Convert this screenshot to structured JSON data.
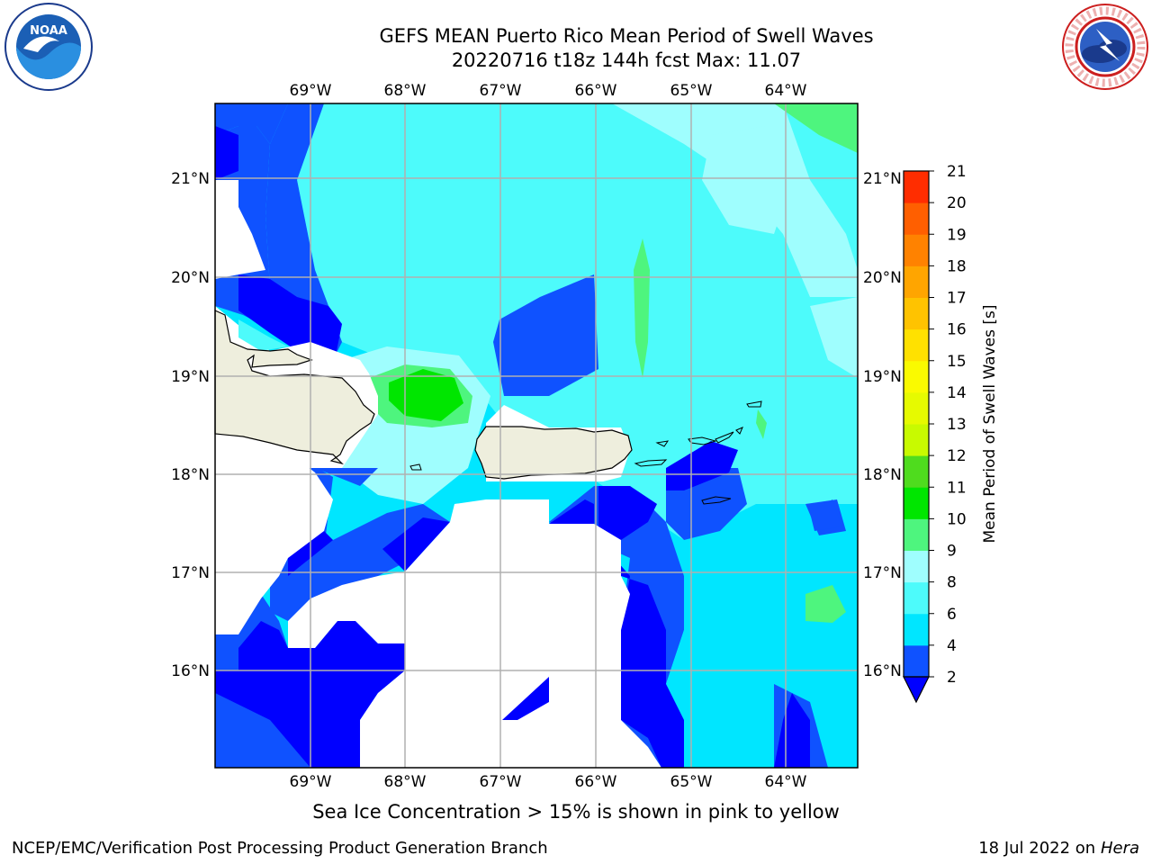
{
  "header": {
    "title_line1": "GEFS MEAN Puerto Rico Mean Period of Swell Waves",
    "title_line2": "20220716 t18z 144h fcst   Max: 11.07"
  },
  "logos": {
    "left": "noaa-logo",
    "right": "nws-logo"
  },
  "map": {
    "lon_labels": [
      "69°W",
      "68°W",
      "67°W",
      "66°W",
      "65°W",
      "64°W"
    ],
    "lat_labels": [
      "21°N",
      "20°N",
      "19°N",
      "18°N",
      "17°N",
      "16°N"
    ],
    "colors": {
      "land": "#eeeedd",
      "coastline": "#000000",
      "grid": "#b0b0b0",
      "no_data": "#ffffff"
    }
  },
  "colorbar": {
    "label": "Mean Period of Swell Waves [s]",
    "ticks": [
      "2",
      "4",
      "6",
      "8",
      "9",
      "10",
      "11",
      "12",
      "13",
      "14",
      "15",
      "16",
      "17",
      "18",
      "19",
      "20",
      "21"
    ],
    "colors": [
      "#0f52ff",
      "#00e6ff",
      "#4dfbfb",
      "#9ffefe",
      "#4ef57e",
      "#00e600",
      "#4fdc1e",
      "#c8fa00",
      "#e6fa00",
      "#fafa00",
      "#ffe100",
      "#ffc300",
      "#ffa500",
      "#ff8200",
      "#ff5f00",
      "#ff2d00"
    ],
    "under_color": "#0000ff"
  },
  "footer": {
    "ice_note": "Sea Ice Concentration > 15% is shown in pink to yellow",
    "branch": "NCEP/EMC/Verification Post Processing Product Generation Branch",
    "date": "18 Jul 2022 on ",
    "machine": "Hera"
  }
}
